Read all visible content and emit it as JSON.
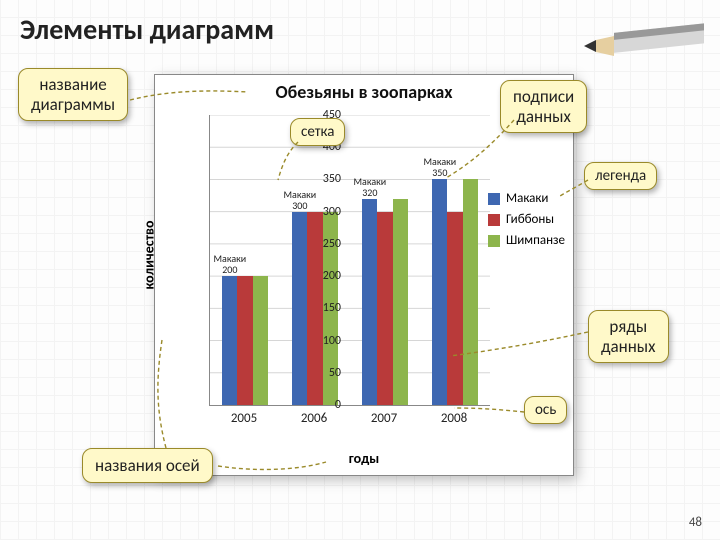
{
  "slide_title": "Элементы диаграмм",
  "page_number": "48",
  "chart": {
    "type": "bar",
    "title": "Обезьяны в зоопарках",
    "title_fontsize": 18,
    "xaxis_title": "годы",
    "yaxis_title": "количество",
    "categories": [
      "2005",
      "2006",
      "2007",
      "2008"
    ],
    "series": [
      {
        "name": "Макаки",
        "color": "#3e67b1",
        "values": [
          200,
          300,
          320,
          350
        ]
      },
      {
        "name": "Гиббоны",
        "color": "#b93a3a",
        "values": [
          200,
          300,
          300,
          300
        ]
      },
      {
        "name": "Шимпанзе",
        "color": "#8db54c",
        "values": [
          200,
          300,
          320,
          350
        ]
      }
    ],
    "ylim": [
      0,
      450
    ],
    "ytick_step": 50,
    "grid_color": "#d6d6d6",
    "background_color": "#ffffff",
    "label_fontsize": 13,
    "tick_fontsize": 12,
    "bar_group_gap": 0.35,
    "data_label_series": "Макаки"
  },
  "legend_title": "легенда",
  "callouts": {
    "chart_title": "название\nдиаграммы",
    "grid": "сетка",
    "data_labels": "подписи\nданных",
    "legend": "легенда",
    "series": "ряды\nданных",
    "axis": "ось",
    "axis_titles": "названия осей"
  }
}
